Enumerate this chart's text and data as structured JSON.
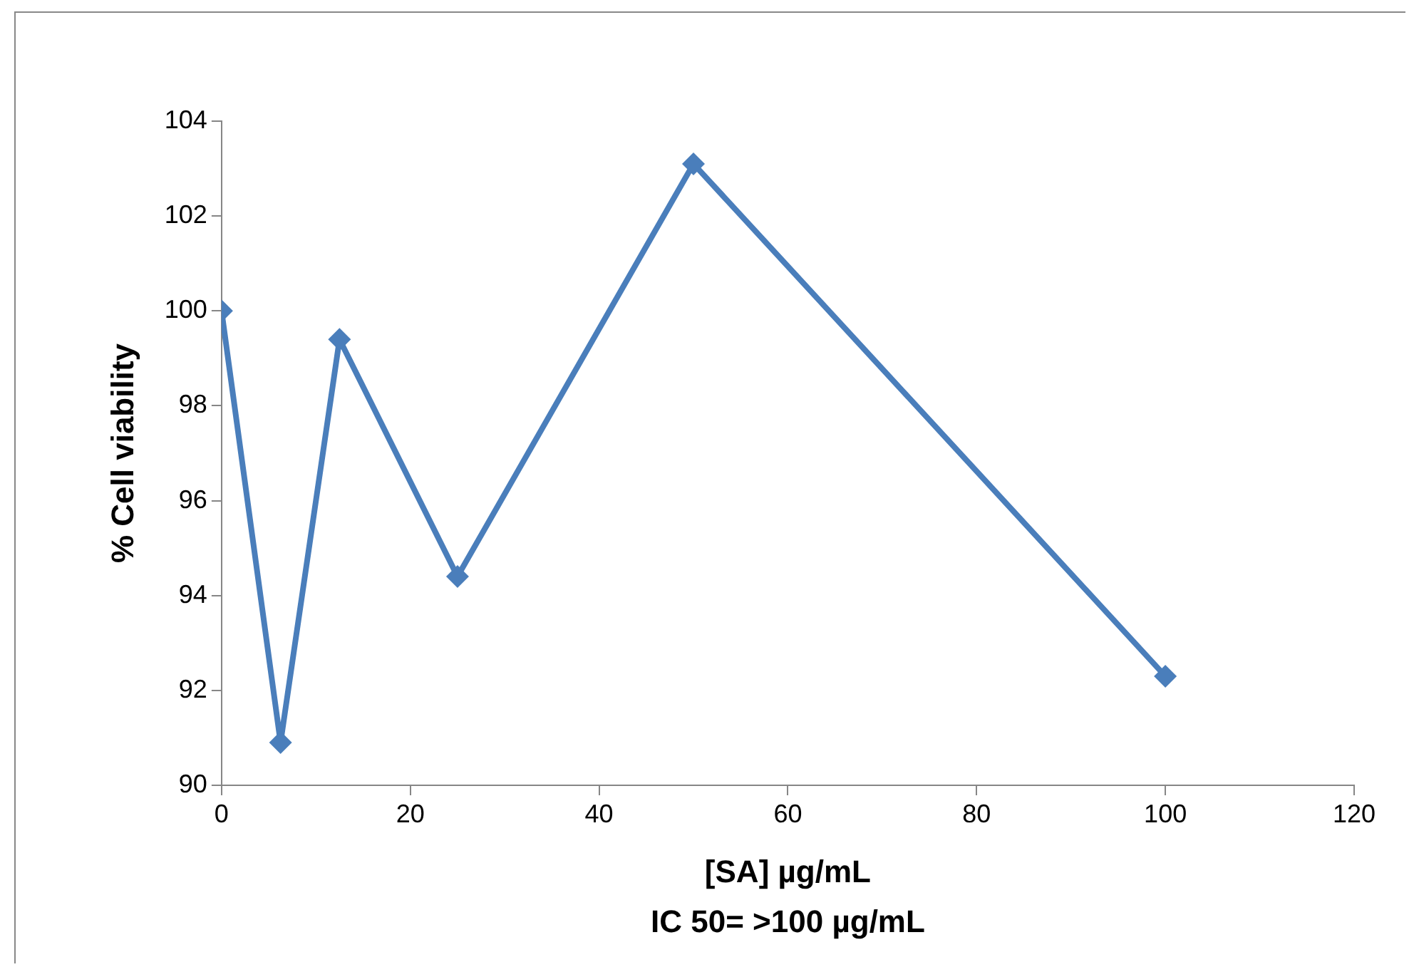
{
  "chart_data": {
    "type": "line",
    "xlabel": "[SA] µg/mL",
    "ylabel": "% Cell viability",
    "annotations": [
      "IC 50= >100 µg/mL"
    ],
    "x": [
      0,
      6.25,
      12.5,
      25,
      50,
      100
    ],
    "series": [
      {
        "color": "#4a7ebb",
        "values": [
          100.0,
          90.9,
          99.4,
          94.4,
          103.1,
          92.3
        ]
      }
    ],
    "xlim": [
      0,
      120
    ],
    "xticks": [
      0,
      20,
      40,
      60,
      80,
      100,
      120
    ],
    "ylim": [
      90,
      104
    ],
    "yticks": [
      90,
      92,
      94,
      96,
      98,
      100,
      102,
      104
    ],
    "grid": false,
    "legend": false,
    "marker": "diamond",
    "line_style": "solid"
  }
}
